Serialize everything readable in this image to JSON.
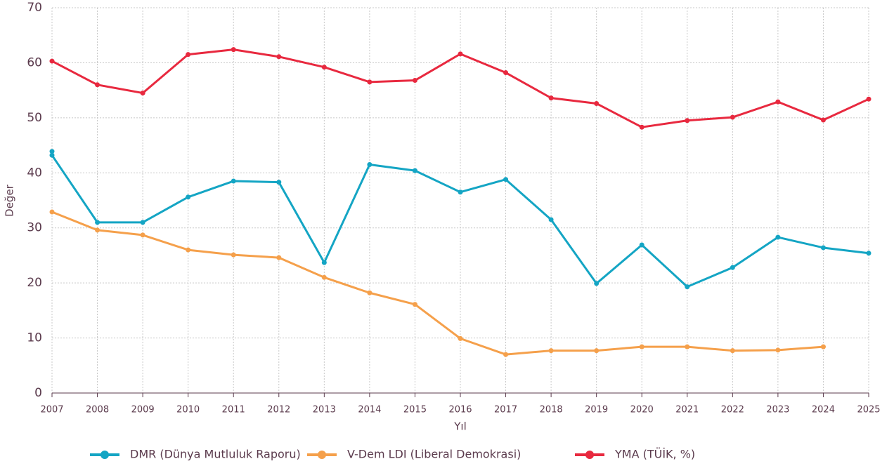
{
  "chart_data": {
    "type": "line",
    "x_label": "Yıl",
    "y_label": "Değer",
    "xlim": [
      2007,
      2025
    ],
    "ylim": [
      0,
      70
    ],
    "xticks": [
      2007,
      2008,
      2009,
      2010,
      2011,
      2012,
      2013,
      2014,
      2015,
      2016,
      2017,
      2018,
      2019,
      2020,
      2021,
      2022,
      2023,
      2024,
      2025
    ],
    "yticks": [
      0,
      10,
      20,
      30,
      40,
      50,
      60,
      70
    ],
    "grid": true,
    "legend": "bottom",
    "series": [
      {
        "name": "DMR (Dünya Mutluluk Raporu)",
        "color": "#14a5c4",
        "x": [
          2007,
          2007,
          2008,
          2009,
          2010,
          2011,
          2012,
          2013,
          2014,
          2015,
          2016,
          2017,
          2018,
          2019,
          2020,
          2021,
          2022,
          2023,
          2024,
          2025
        ],
        "values": [
          43.9,
          43.2,
          31.0,
          31.0,
          35.6,
          38.5,
          38.3,
          23.7,
          41.5,
          40.4,
          36.5,
          38.8,
          31.5,
          19.9,
          26.9,
          19.3,
          22.8,
          28.3,
          26.4,
          25.4
        ]
      },
      {
        "name": "V-Dem LDI (Liberal Demokrasi)",
        "color": "#f5a04b",
        "x": [
          2007,
          2008,
          2009,
          2010,
          2011,
          2012,
          2013,
          2014,
          2015,
          2016,
          2017,
          2018,
          2019,
          2020,
          2021,
          2022,
          2023,
          2024
        ],
        "values": [
          32.9,
          29.6,
          28.7,
          26.0,
          25.1,
          24.6,
          21.0,
          18.2,
          16.1,
          9.9,
          7.0,
          7.7,
          7.7,
          8.4,
          8.4,
          7.7,
          7.8,
          8.4
        ]
      },
      {
        "name": "YMA (TÜİK, %)",
        "color": "#e8293f",
        "x": [
          2007,
          2008,
          2009,
          2010,
          2011,
          2012,
          2013,
          2014,
          2015,
          2016,
          2017,
          2018,
          2019,
          2020,
          2021,
          2022,
          2023,
          2024,
          2025
        ],
        "values": [
          60.3,
          56.0,
          54.5,
          61.5,
          62.4,
          61.1,
          59.2,
          56.5,
          56.8,
          61.6,
          58.2,
          53.6,
          52.6,
          48.3,
          49.5,
          50.1,
          52.9,
          49.6,
          53.4
        ]
      }
    ]
  }
}
